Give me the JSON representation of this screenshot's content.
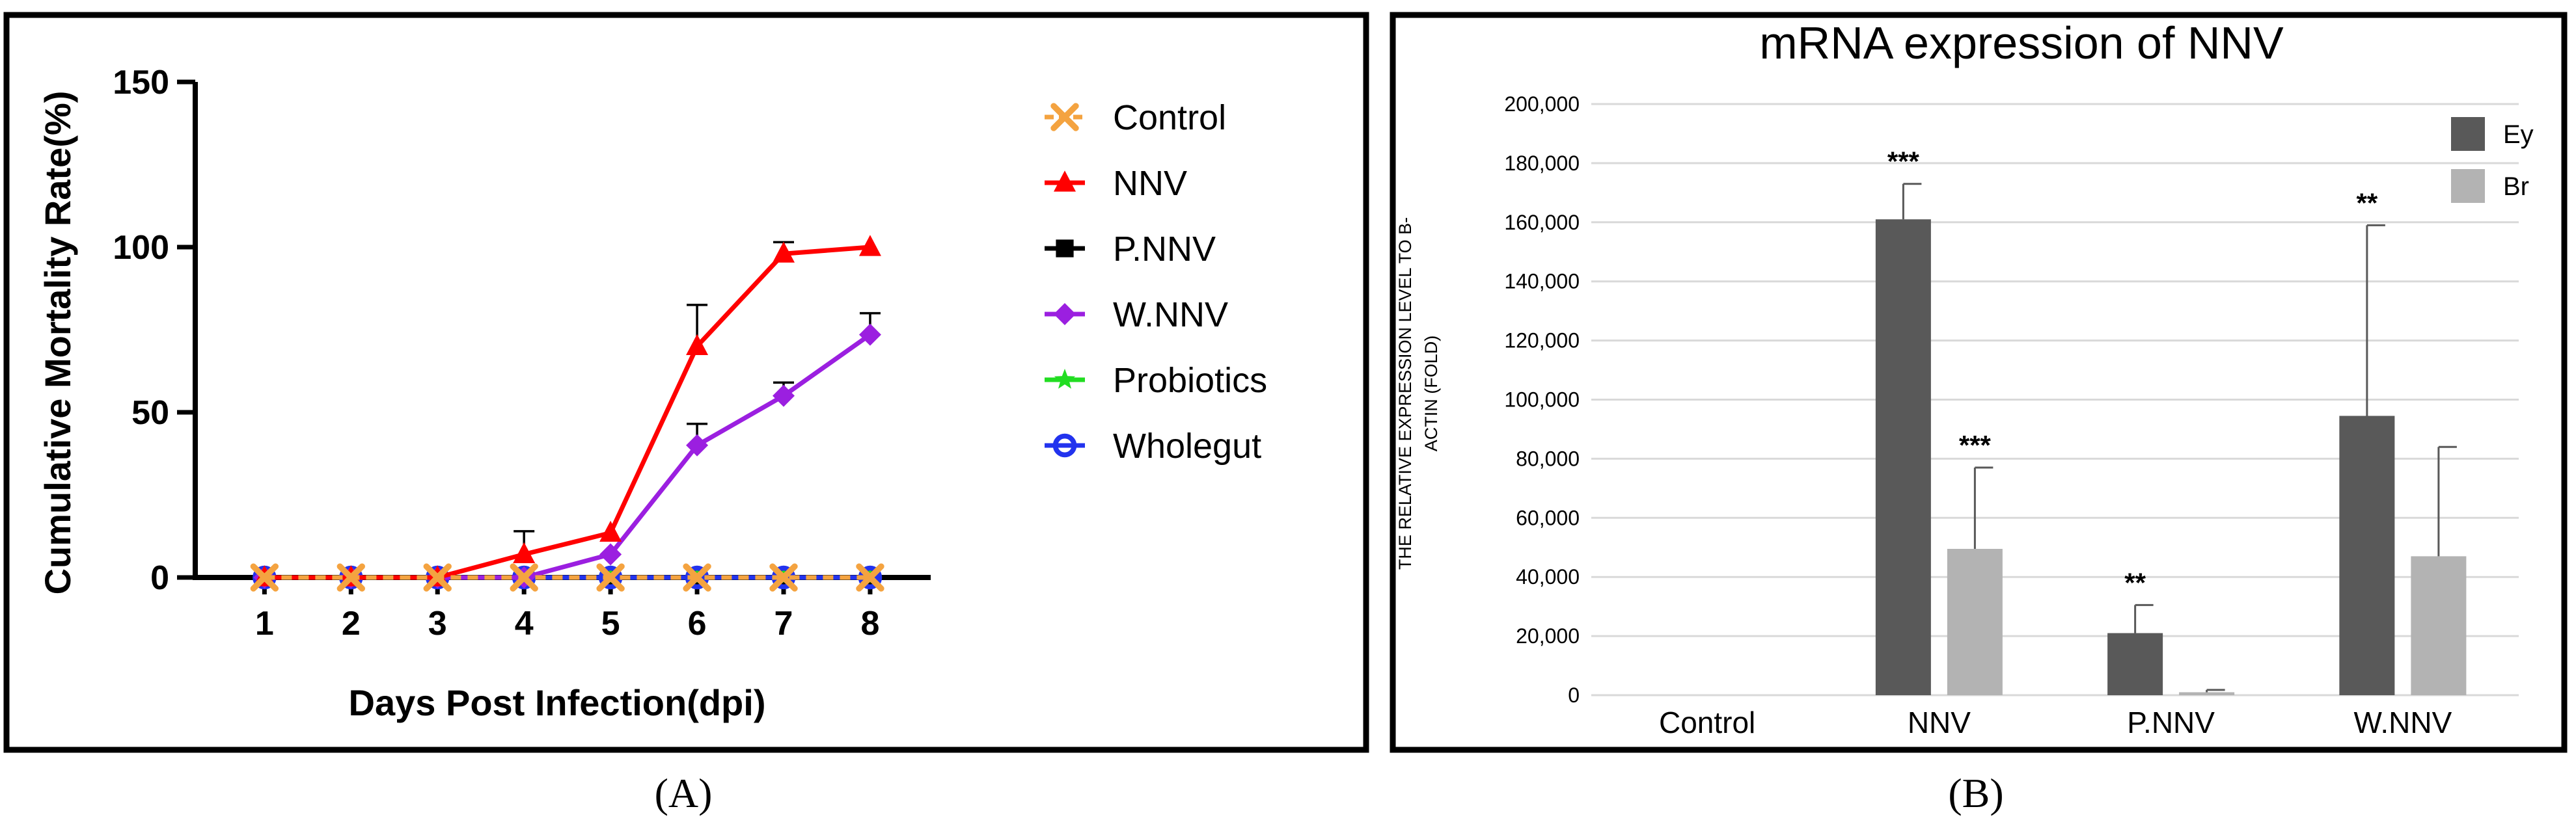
{
  "chart_data": [
    {
      "type": "line",
      "panel_label": "(A)",
      "title": "",
      "xlabel": "Days Post Infection(dpi)",
      "ylabel": "Cumulative Mortality Rate(%)",
      "x": [
        1,
        2,
        3,
        4,
        5,
        6,
        7,
        8
      ],
      "x_tick_labels": [
        "1",
        "2",
        "3",
        "4",
        "5",
        "6",
        "7",
        "8"
      ],
      "y_ticks": [
        0,
        50,
        100,
        150
      ],
      "y_tick_labels": [
        "0",
        "50",
        "100",
        "150"
      ],
      "ylim": [
        0,
        150
      ],
      "xlim": [
        0.2,
        8.7
      ],
      "grid": false,
      "legend_position": "right",
      "series": [
        {
          "name": "Control",
          "color": "#F4A340",
          "marker": "x",
          "dashed": true,
          "values": [
            0,
            0,
            0,
            0,
            0,
            0,
            0,
            0
          ],
          "errors": [
            0,
            0,
            0,
            0,
            0,
            0,
            0,
            0
          ]
        },
        {
          "name": "NNV",
          "color": "#FF0000",
          "marker": "triangle",
          "dashed": false,
          "values": [
            0,
            0,
            0,
            7,
            13.5,
            70,
            98,
            100
          ],
          "errors": [
            0,
            0,
            0,
            7,
            0,
            12.5,
            3.5,
            0
          ]
        },
        {
          "name": "P.NNV",
          "color": "#000000",
          "marker": "square",
          "dashed": false,
          "values": [
            0,
            0,
            0,
            0,
            0,
            0,
            0,
            0
          ],
          "errors": [
            0,
            0,
            0,
            0,
            0,
            0,
            0,
            0
          ]
        },
        {
          "name": "W.NNV",
          "color": "#9B1FE0",
          "marker": "diamond",
          "dashed": false,
          "values": [
            0,
            0,
            0,
            0,
            7,
            40,
            55,
            73.5
          ],
          "errors": [
            0,
            0,
            0,
            0,
            0,
            6.5,
            4,
            6.5
          ]
        },
        {
          "name": "Probiotics",
          "color": "#22DD22",
          "marker": "star",
          "dashed": false,
          "values": [
            0,
            0,
            0,
            0,
            0,
            0,
            0,
            0
          ],
          "errors": [
            0,
            0,
            0,
            0,
            0,
            0,
            0,
            0
          ]
        },
        {
          "name": "Wholegut",
          "color": "#2233EE",
          "marker": "circle",
          "dashed": false,
          "values": [
            0,
            0,
            0,
            0,
            0,
            0,
            0,
            0
          ],
          "errors": [
            0,
            0,
            0,
            0,
            0,
            0,
            0,
            0
          ]
        }
      ]
    },
    {
      "type": "bar",
      "panel_label": "(B)",
      "title": "mRNA expression of NNV",
      "xlabel": "",
      "ylabel_lines": [
        "THE RELATIVE EXPRESSION LEVEL TO B-",
        "ACTIN (FOLD)"
      ],
      "categories": [
        "Control",
        "NNV",
        "P.NNV",
        "W.NNV"
      ],
      "y_ticks": [
        0,
        20000,
        40000,
        60000,
        80000,
        100000,
        120000,
        140000,
        160000,
        180000,
        200000
      ],
      "y_tick_labels": [
        "0",
        "20,000",
        "40,000",
        "60,000",
        "80,000",
        "100,000",
        "120,000",
        "140,000",
        "160,000",
        "180,000",
        "200,000"
      ],
      "ylim": [
        0,
        200000
      ],
      "grid": true,
      "legend_position": "top-right",
      "series": [
        {
          "name": "Ey",
          "color": "#595959",
          "values": [
            0,
            161000,
            21000,
            94500
          ],
          "errors": [
            0,
            12000,
            9500,
            64500
          ],
          "significance": [
            "",
            "***",
            "**",
            "**"
          ]
        },
        {
          "name": "Br",
          "color": "#B3B3B3",
          "values": [
            0,
            49500,
            1000,
            47000
          ],
          "errors": [
            0,
            27500,
            800,
            37000
          ],
          "significance": [
            "",
            "***",
            "",
            ""
          ]
        }
      ]
    }
  ]
}
